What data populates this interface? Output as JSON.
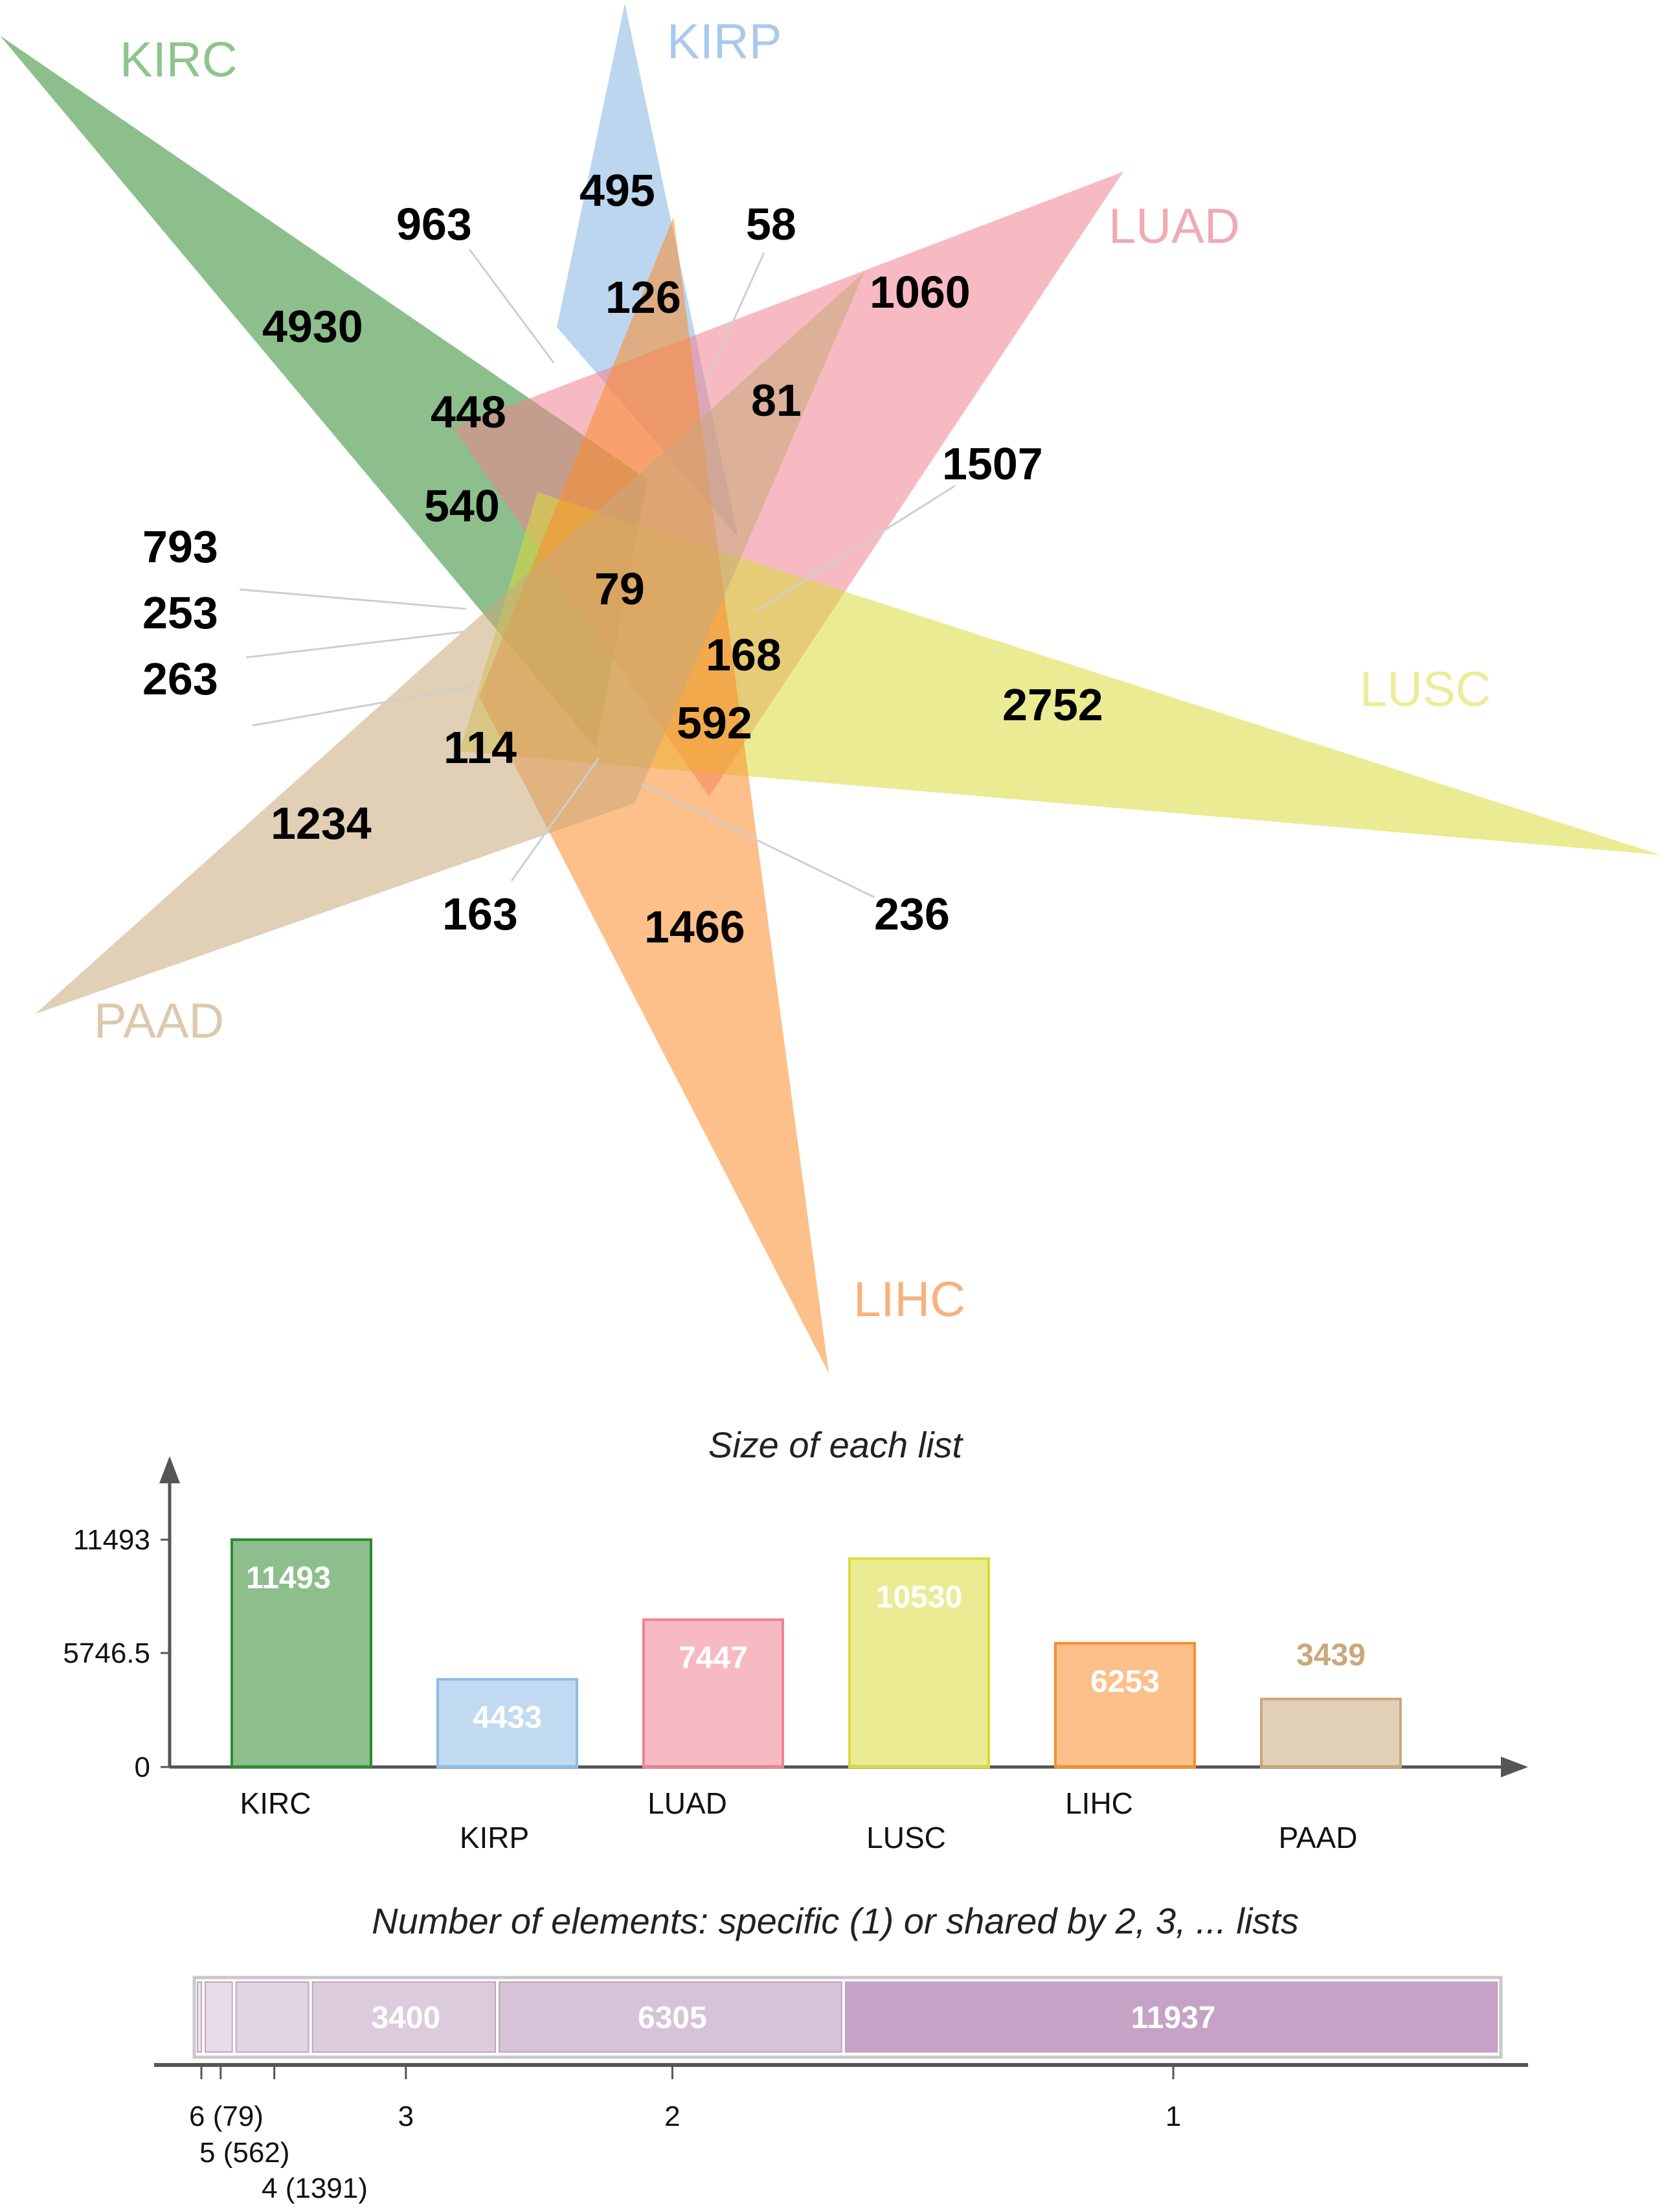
{
  "chart_data": [
    {
      "type": "venn",
      "sets": [
        {
          "name": "KIRC",
          "color": "#2e8b2e"
        },
        {
          "name": "KIRP",
          "color": "#8fbbe6"
        },
        {
          "name": "LUAD",
          "color": "#f0828f"
        },
        {
          "name": "LUSC",
          "color": "#dada3a"
        },
        {
          "name": "LIHC",
          "color": "#fb8c2a"
        },
        {
          "name": "PAAD",
          "color": "#c9a87a"
        }
      ],
      "region_values": [
        4930,
        495,
        1060,
        2752,
        1466,
        1234,
        963,
        126,
        58,
        448,
        81,
        1507,
        540,
        79,
        793,
        253,
        263,
        168,
        592,
        114,
        163,
        236
      ]
    },
    {
      "type": "bar",
      "title": "Size of each list",
      "categories": [
        "KIRC",
        "KIRP",
        "LUAD",
        "LUSC",
        "LIHC",
        "PAAD"
      ],
      "values": [
        11493,
        4433,
        7447,
        10530,
        6253,
        3439
      ],
      "colors": [
        "#2e8b2e",
        "#8fbbe6",
        "#f0828f",
        "#dada3a",
        "#fb8c2a",
        "#c9a87a"
      ],
      "yticks": [
        "11493",
        "5746.5",
        "0"
      ],
      "ylim": [
        0,
        11493
      ]
    },
    {
      "type": "bar",
      "orientation": "horizontal-stacked",
      "title": "Number of elements: specific (1) or shared by 2, 3, ... lists",
      "segments": [
        {
          "degree": 6,
          "value": 79,
          "label": "",
          "color": "#ece3ec"
        },
        {
          "degree": 5,
          "value": 562,
          "label": "",
          "color": "#e8dce8"
        },
        {
          "degree": 4,
          "value": 1391,
          "label": "",
          "color": "#e2d4e2"
        },
        {
          "degree": 3,
          "value": 3400,
          "label": "3400",
          "color": "#dccbdc"
        },
        {
          "degree": 2,
          "value": 6305,
          "label": "6305",
          "color": "#d7c3d7"
        },
        {
          "degree": 1,
          "value": 11937,
          "label": "11937",
          "color": "#c6a2c6"
        }
      ],
      "tick_labels": [
        "6 (79)",
        "5 (562)",
        "4 (1391)",
        "3",
        "2",
        "1"
      ]
    }
  ]
}
